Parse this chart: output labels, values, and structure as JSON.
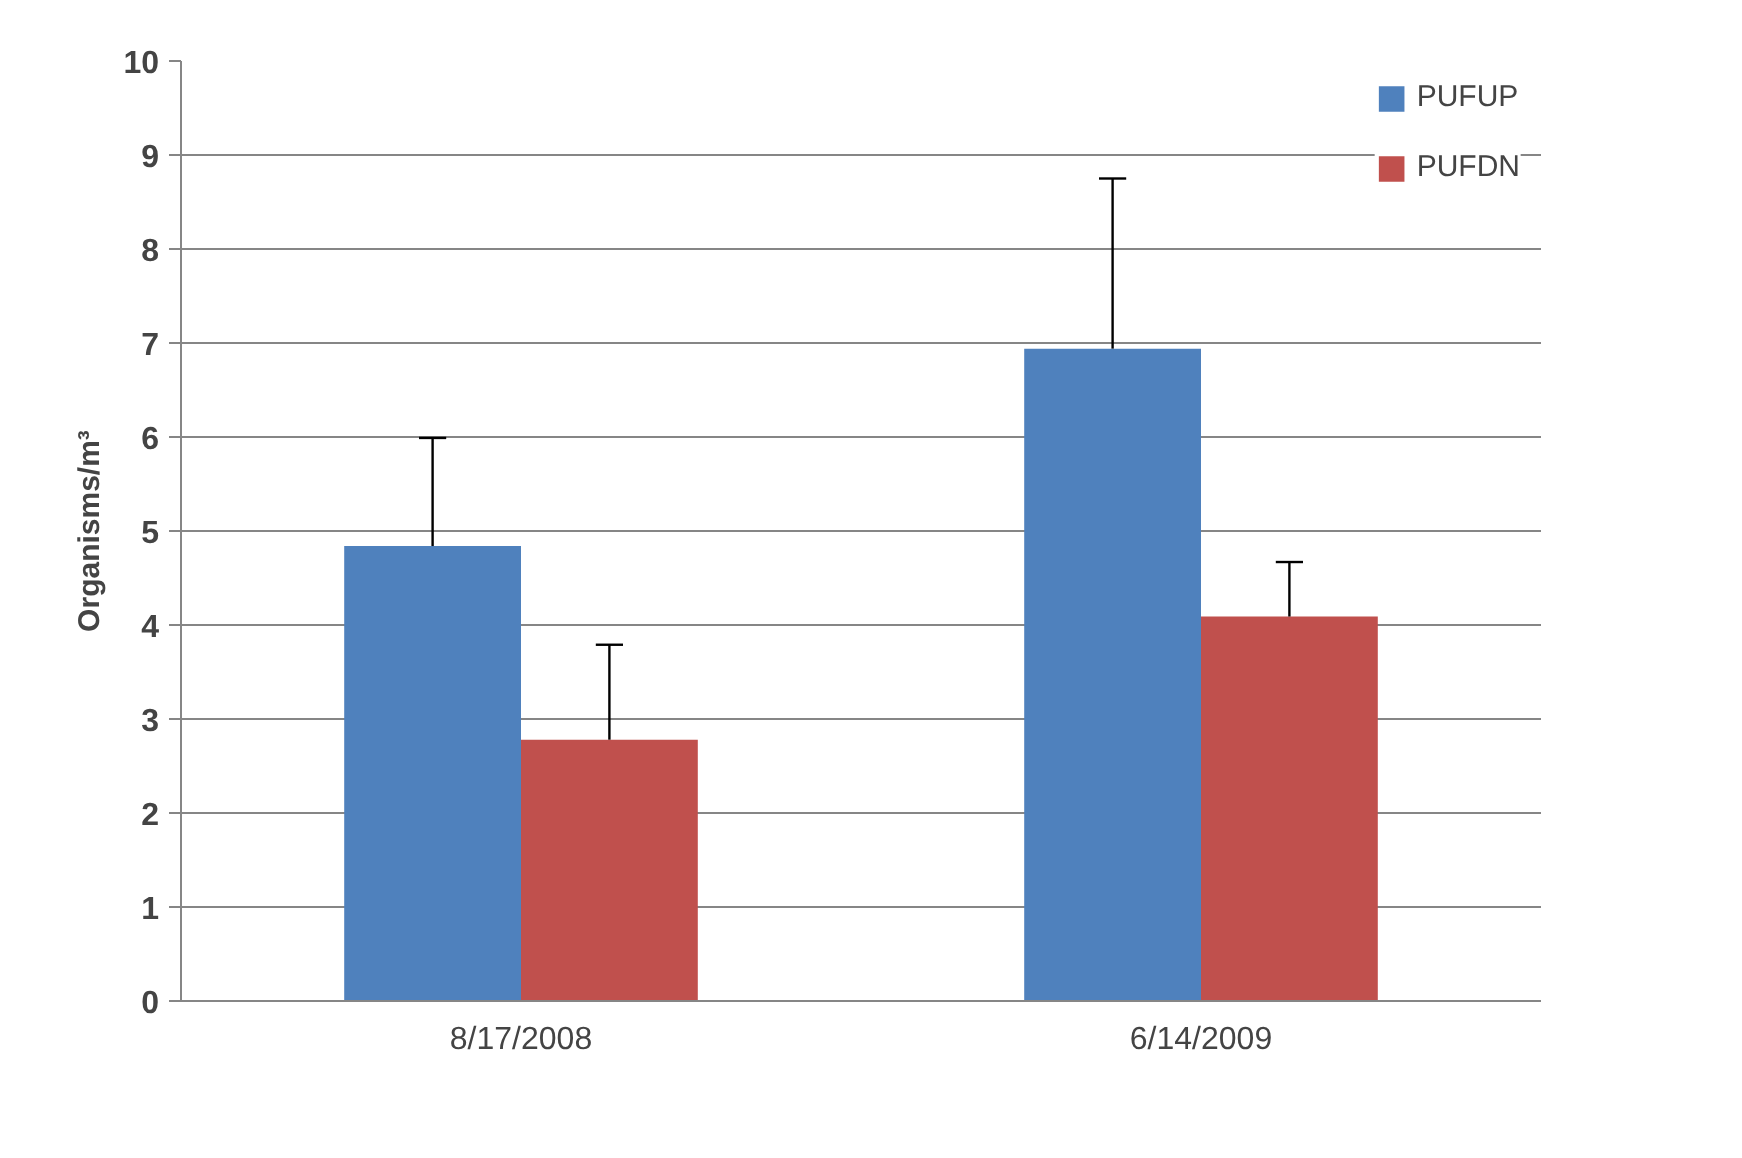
{
  "chart_data": {
    "type": "bar",
    "ylabel": "Organisms/m³",
    "categories": [
      "8/17/2008",
      "6/14/2009"
    ],
    "series": [
      {
        "name": "PUFUP",
        "color": "#4f81bd",
        "values": [
          4.84,
          6.94
        ],
        "errors": [
          [
            4.84,
            5.99
          ],
          [
            6.94,
            8.75
          ]
        ]
      },
      {
        "name": "PUFDN",
        "color": "#c0504d",
        "values": [
          2.78,
          4.09
        ],
        "errors": [
          [
            2.78,
            3.79
          ],
          [
            4.09,
            4.67
          ]
        ]
      }
    ],
    "ylim": [
      0,
      10
    ],
    "yticks": [
      0,
      1,
      2,
      3,
      4,
      5,
      6,
      7,
      8,
      9,
      10
    ],
    "grid": "y",
    "legend": "top right"
  }
}
